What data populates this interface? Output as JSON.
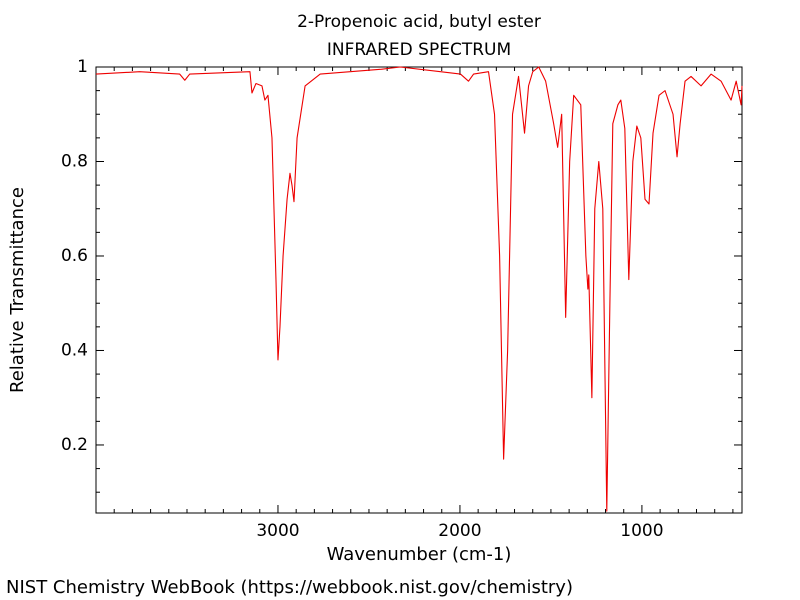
{
  "chart_data": {
    "type": "line",
    "title": "2-Propenoic acid, butyl ester",
    "subtitle": "INFRARED SPECTRUM",
    "xlabel": "Wavenumber (cm-1)",
    "ylabel": "Relative Transmittance",
    "color": "#ee0000",
    "x": [
      4000,
      3760,
      3540,
      3512,
      3485,
      3154,
      3143,
      3121,
      3088,
      3072,
      3055,
      3033,
      3011,
      3000,
      2989,
      2972,
      2950,
      2934,
      2923,
      2912,
      2895,
      2851,
      2768,
      2438,
      2328,
      2107,
      1997,
      1953,
      1925,
      1843,
      1810,
      1782,
      1760,
      1738,
      1711,
      1678,
      1645,
      1623,
      1600,
      1567,
      1529,
      1485,
      1463,
      1441,
      1419,
      1397,
      1375,
      1336,
      1308,
      1297,
      1292,
      1275,
      1259,
      1237,
      1215,
      1193,
      1176,
      1160,
      1132,
      1116,
      1094,
      1072,
      1050,
      1028,
      1006,
      983,
      961,
      939,
      906,
      873,
      829,
      807,
      790,
      763,
      730,
      675,
      620,
      565,
      510,
      482,
      455,
      450
    ],
    "values": [
      0.985,
      0.99,
      0.985,
      0.972,
      0.985,
      0.99,
      0.945,
      0.965,
      0.96,
      0.93,
      0.94,
      0.85,
      0.55,
      0.38,
      0.45,
      0.6,
      0.72,
      0.775,
      0.75,
      0.715,
      0.85,
      0.96,
      0.985,
      0.995,
      1.0,
      0.99,
      0.985,
      0.97,
      0.985,
      0.99,
      0.9,
      0.6,
      0.17,
      0.4,
      0.9,
      0.98,
      0.86,
      0.96,
      0.99,
      1.0,
      0.97,
      0.88,
      0.83,
      0.9,
      0.47,
      0.8,
      0.94,
      0.92,
      0.6,
      0.53,
      0.56,
      0.3,
      0.7,
      0.8,
      0.7,
      0.06,
      0.5,
      0.88,
      0.92,
      0.93,
      0.87,
      0.55,
      0.8,
      0.875,
      0.85,
      0.72,
      0.71,
      0.86,
      0.94,
      0.95,
      0.9,
      0.81,
      0.88,
      0.97,
      0.98,
      0.96,
      0.985,
      0.97,
      0.93,
      0.97,
      0.92,
      0.96
    ],
    "xlim": [
      4000,
      450
    ],
    "ylim": [
      0.056,
      1
    ],
    "xticks": [
      3000,
      2000,
      1000
    ],
    "yticks": [
      0.2,
      0.4,
      0.6,
      0.8,
      1
    ],
    "xminorticks": [
      3900,
      3800,
      3700,
      3600,
      3500,
      3400,
      3300,
      3200,
      3100,
      2900,
      2800,
      2700,
      2600,
      2500,
      2400,
      2300,
      2200,
      2100,
      1900,
      1800,
      1700,
      1600,
      1500,
      1400,
      1300,
      1200,
      1100,
      900,
      800,
      700,
      600,
      500
    ],
    "yminorticks": [
      0.1,
      0.15,
      0.25,
      0.3,
      0.35,
      0.45,
      0.5,
      0.55,
      0.65,
      0.7,
      0.75,
      0.85,
      0.9,
      0.95
    ]
  },
  "footer": "NIST Chemistry WebBook (https://webbook.nist.gov/chemistry)"
}
